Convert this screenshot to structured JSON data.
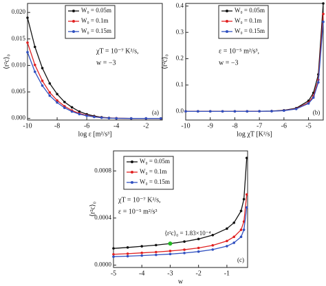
{
  "chart_data": [
    {
      "type": "line",
      "panel_label": "(a)",
      "xlabel": "log ε [m²/s³]",
      "ylabel": "⟨r²c⟩₀",
      "x": [
        -10,
        -9.5,
        -9,
        -8.5,
        -8,
        -7.5,
        -7,
        -6.5,
        -6,
        -5.5,
        -5,
        -4.5,
        -4,
        -3,
        -2,
        -1
      ],
      "series": [
        {
          "name": "W₀ = 0.05m",
          "color": "#111111",
          "values": [
            0.019,
            0.0135,
            0.0095,
            0.0066,
            0.0046,
            0.0031,
            0.0021,
            0.0013,
            0.0008,
            0.00045,
            0.00022,
            0.0001,
            4e-05,
            0,
            0,
            0
          ]
        },
        {
          "name": "W₀ = 0.1m",
          "color": "#e02020",
          "values": [
            0.0143,
            0.0101,
            0.0071,
            0.0049,
            0.0034,
            0.0023,
            0.0015,
            0.00095,
            0.00058,
            0.00032,
            0.00016,
            7e-05,
            3e-05,
            0,
            0,
            0
          ]
        },
        {
          "name": "W₀ = 0.15m",
          "color": "#3050c0",
          "values": [
            0.0125,
            0.0088,
            0.0062,
            0.0043,
            0.003,
            0.002,
            0.0013,
            0.00082,
            0.0005,
            0.00028,
            0.00014,
            6e-05,
            2e-05,
            0,
            0,
            0
          ]
        }
      ],
      "xlim": [
        -10,
        -0.9
      ],
      "ylim": [
        -0.0003,
        0.0217
      ],
      "xticks": [
        -10,
        -8,
        -6,
        -4,
        -2
      ],
      "yticks": [
        {
          "value": 0,
          "label": "0.000"
        },
        {
          "value": 0.005,
          "label": "0.005"
        },
        {
          "value": 0.01,
          "label": "0.010"
        },
        {
          "value": 0.015,
          "label": "0.015"
        },
        {
          "value": 0.02,
          "label": "0.020"
        }
      ],
      "annotations": [
        "χT = 10⁻⁷ K²/s,",
        "w = −3"
      ]
    },
    {
      "type": "line",
      "panel_label": "(b)",
      "xlabel": "log χT [K²/s]",
      "ylabel": "⟨r²c⟩₀",
      "x": [
        -10,
        -9.5,
        -9,
        -8.5,
        -8,
        -7.5,
        -7,
        -6.5,
        -6,
        -5.5,
        -5,
        -4.8,
        -4.6,
        -4.4
      ],
      "series": [
        {
          "name": "W₀ = 0.05m",
          "color": "#111111",
          "values": [
            0,
            0,
            0,
            0,
            0,
            0,
            0.0005,
            0.001,
            0.004,
            0.012,
            0.04,
            0.07,
            0.14,
            0.41
          ]
        },
        {
          "name": "W₀ = 0.1m",
          "color": "#e02020",
          "values": [
            0,
            0,
            0,
            0,
            0,
            0,
            0.0004,
            0.0008,
            0.003,
            0.01,
            0.033,
            0.058,
            0.12,
            0.37
          ]
        },
        {
          "name": "W₀ = 0.15m",
          "color": "#3050c0",
          "values": [
            0,
            0,
            0,
            0,
            0,
            0,
            0.0003,
            0.0007,
            0.0027,
            0.009,
            0.03,
            0.052,
            0.11,
            0.34
          ]
        }
      ],
      "xlim": [
        -10,
        -4.4
      ],
      "ylim": [
        -0.033,
        0.41
      ],
      "xticks": [
        -10,
        -9,
        -8,
        -7,
        -6,
        -5
      ],
      "yticks": [
        {
          "value": 0,
          "label": "0.0"
        },
        0.1,
        0.2,
        0.3,
        0.4
      ],
      "annotations": [
        "ε = 10⁻⁵ m²/s³,",
        "w = −3"
      ]
    },
    {
      "type": "line",
      "panel_label": "(c)",
      "xlabel": "w",
      "ylabel": "⟨r²c⟩₀",
      "x": [
        -5,
        -4.5,
        -4,
        -3.5,
        -3,
        -2.5,
        -2,
        -1.5,
        -1,
        -0.75,
        -0.5,
        -0.4,
        -0.3
      ],
      "series": [
        {
          "name": "W₀ = 0.05m",
          "color": "#111111",
          "values": [
            0.000142,
            0.00015,
            0.00016,
            0.00017,
            0.000183,
            0.0002,
            0.000222,
            0.000255,
            0.00031,
            0.00036,
            0.00046,
            0.00056,
            0.00091
          ]
        },
        {
          "name": "W₀ = 0.1m",
          "color": "#e02020",
          "values": [
            9.2e-05,
            9.7e-05,
            0.000104,
            0.000111,
            0.00012,
            0.000131,
            0.000146,
            0.000168,
            0.000205,
            0.00024,
            0.0003,
            0.00037,
            0.0006
          ]
        },
        {
          "name": "W₀ = 0.15m",
          "color": "#3050c0",
          "values": [
            7.2e-05,
            7.6e-05,
            8.1e-05,
            8.7e-05,
            9.4e-05,
            0.000103,
            0.000115,
            0.000132,
            0.000161,
            0.00019,
            0.00024,
            0.0003,
            0.00049
          ]
        }
      ],
      "xlim": [
        -5,
        -0.27
      ],
      "ylim": [
        -2e-05,
        0.00097
      ],
      "xticks": [
        -5,
        -4,
        -3,
        -2,
        -1
      ],
      "yticks": [
        {
          "value": 0,
          "label": "0.0000"
        },
        0.0004,
        0.0008
      ],
      "annotations": [
        "χT = 10⁻⁷ K²/s,",
        "ε = 10⁻⁵ m²/s³"
      ],
      "highlight": {
        "x": -3,
        "y": 0.000183,
        "label": "⟨r²c⟩₀ = 1.83×10⁻⁴",
        "color": "#22bb22"
      }
    }
  ]
}
